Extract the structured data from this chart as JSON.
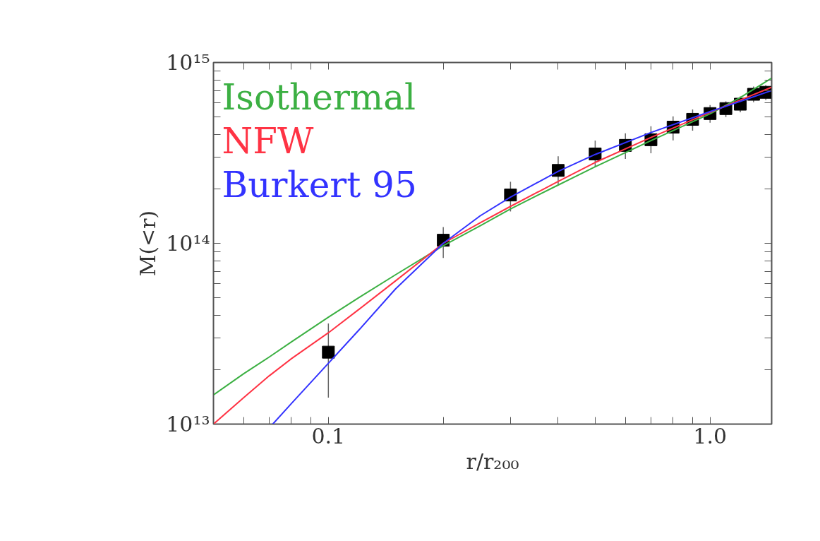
{
  "chart_data": {
    "type": "line",
    "xlabel": "r/r₂₀₀",
    "ylabel": "M(<r)",
    "log": "xy",
    "xlim": [
      0.05,
      1.45
    ],
    "ylim": [
      10000000000000.0,
      1000000000000000.0
    ],
    "xticks": [
      {
        "value": 0.06,
        "label": null
      },
      {
        "value": 0.07,
        "label": null
      },
      {
        "value": 0.08,
        "label": null
      },
      {
        "value": 0.09,
        "label": null
      },
      {
        "value": 0.1,
        "label": "0.1"
      },
      {
        "value": 0.2,
        "label": null
      },
      {
        "value": 0.3,
        "label": null
      },
      {
        "value": 0.4,
        "label": null
      },
      {
        "value": 0.5,
        "label": null
      },
      {
        "value": 0.6,
        "label": null
      },
      {
        "value": 0.7,
        "label": null
      },
      {
        "value": 0.8,
        "label": null
      },
      {
        "value": 0.9,
        "label": null
      },
      {
        "value": 1.0,
        "label": "1.0"
      }
    ],
    "yticks": [
      {
        "value": 10000000000000.0,
        "label": "10¹³"
      },
      {
        "value": 20000000000000.0,
        "label": null
      },
      {
        "value": 30000000000000.0,
        "label": null
      },
      {
        "value": 40000000000000.0,
        "label": null
      },
      {
        "value": 50000000000000.0,
        "label": null
      },
      {
        "value": 60000000000000.0,
        "label": null
      },
      {
        "value": 70000000000000.0,
        "label": null
      },
      {
        "value": 80000000000000.0,
        "label": null
      },
      {
        "value": 90000000000000.0,
        "label": null
      },
      {
        "value": 100000000000000.0,
        "label": "10¹⁴"
      },
      {
        "value": 200000000000000.0,
        "label": null
      },
      {
        "value": 300000000000000.0,
        "label": null
      },
      {
        "value": 400000000000000.0,
        "label": null
      },
      {
        "value": 500000000000000.0,
        "label": null
      },
      {
        "value": 600000000000000.0,
        "label": null
      },
      {
        "value": 700000000000000.0,
        "label": null
      },
      {
        "value": 800000000000000.0,
        "label": null
      },
      {
        "value": 900000000000000.0,
        "label": null
      },
      {
        "value": 1000000000000000.0,
        "label": "10¹⁵"
      }
    ],
    "grid": false,
    "legend": "top left",
    "series": [
      {
        "type": "line",
        "name": "Isothermal",
        "color": "#3cb043",
        "marker": "none",
        "x": [
          0.05,
          0.06,
          0.07,
          0.08,
          0.1,
          0.12,
          0.15,
          0.2,
          0.25,
          0.3,
          0.4,
          0.5,
          0.7,
          1.0,
          1.2,
          1.45
        ],
        "values": [
          14500000000000.0,
          19000000000000.0,
          23500000000000.0,
          28500000000000.0,
          39000000000000.0,
          50000000000000.0,
          67000000000000.0,
          97000000000000.0,
          125000000000000.0,
          155000000000000.0,
          210000000000000.0,
          265000000000000.0,
          370000000000000.0,
          520000000000000.0,
          640000000000000.0,
          820000000000000.0
        ]
      },
      {
        "type": "line",
        "name": "NFW",
        "color": "#ff3344",
        "marker": "none",
        "x": [
          0.05,
          0.06,
          0.07,
          0.08,
          0.1,
          0.12,
          0.15,
          0.2,
          0.25,
          0.3,
          0.4,
          0.5,
          0.7,
          1.0,
          1.2,
          1.45
        ],
        "values": [
          10000000000000.0,
          14000000000000.0,
          18500000000000.0,
          23000000000000.0,
          32000000000000.0,
          43000000000000.0,
          62000000000000.0,
          100000000000000.0,
          130000000000000.0,
          160000000000000.0,
          220000000000000.0,
          280000000000000.0,
          385000000000000.0,
          530000000000000.0,
          620000000000000.0,
          730000000000000.0
        ]
      },
      {
        "type": "line",
        "name": "Burkert 95",
        "color": "#3333ff",
        "marker": "none",
        "x": [
          0.0715,
          0.08,
          0.1,
          0.12,
          0.15,
          0.2,
          0.25,
          0.3,
          0.4,
          0.5,
          0.7,
          1.0,
          1.2,
          1.45
        ],
        "values": [
          10000000000000.0,
          13000000000000.0,
          21700000000000.0,
          33000000000000.0,
          56000000000000.0,
          100000000000000.0,
          142000000000000.0,
          180000000000000.0,
          250000000000000.0,
          310000000000000.0,
          410000000000000.0,
          535000000000000.0,
          610000000000000.0,
          700000000000000.0
        ]
      },
      {
        "type": "scatter",
        "color": "#000000",
        "marker": "square",
        "x": [
          0.1,
          0.2,
          0.3,
          0.4,
          0.5,
          0.6,
          0.7,
          0.8,
          0.9,
          1.0,
          1.1,
          1.2,
          1.3,
          1.4
        ],
        "values": [
          25000000000000.0,
          104000000000000.0,
          185000000000000.0,
          253000000000000.0,
          312000000000000.0,
          348000000000000.0,
          374000000000000.0,
          439000000000000.0,
          485000000000000.0,
          522000000000000.0,
          556000000000000.0,
          588000000000000.0,
          667000000000000.0,
          684000000000000.0
        ],
        "errors": [
          [
            14000000000000.0,
            36000000000000.0
          ],
          [
            83000000000000.0,
            123000000000000.0
          ],
          [
            150000000000000.0,
            219000000000000.0
          ],
          [
            211000000000000.0,
            303000000000000.0
          ],
          [
            263000000000000.0,
            370000000000000.0
          ],
          [
            293000000000000.0,
            406000000000000.0
          ],
          [
            315000000000000.0,
            444000000000000.0
          ],
          [
            371000000000000.0,
            504000000000000.0
          ],
          [
            420000000000000.0,
            550000000000000.0
          ],
          [
            464000000000000.0,
            582000000000000.0
          ],
          [
            499000000000000.0,
            610000000000000.0
          ],
          [
            530000000000000.0,
            650000000000000.0
          ],
          [
            603000000000000.0,
            736000000000000.0
          ],
          [
            620000000000000.0,
            750000000000000.0
          ]
        ]
      }
    ]
  }
}
